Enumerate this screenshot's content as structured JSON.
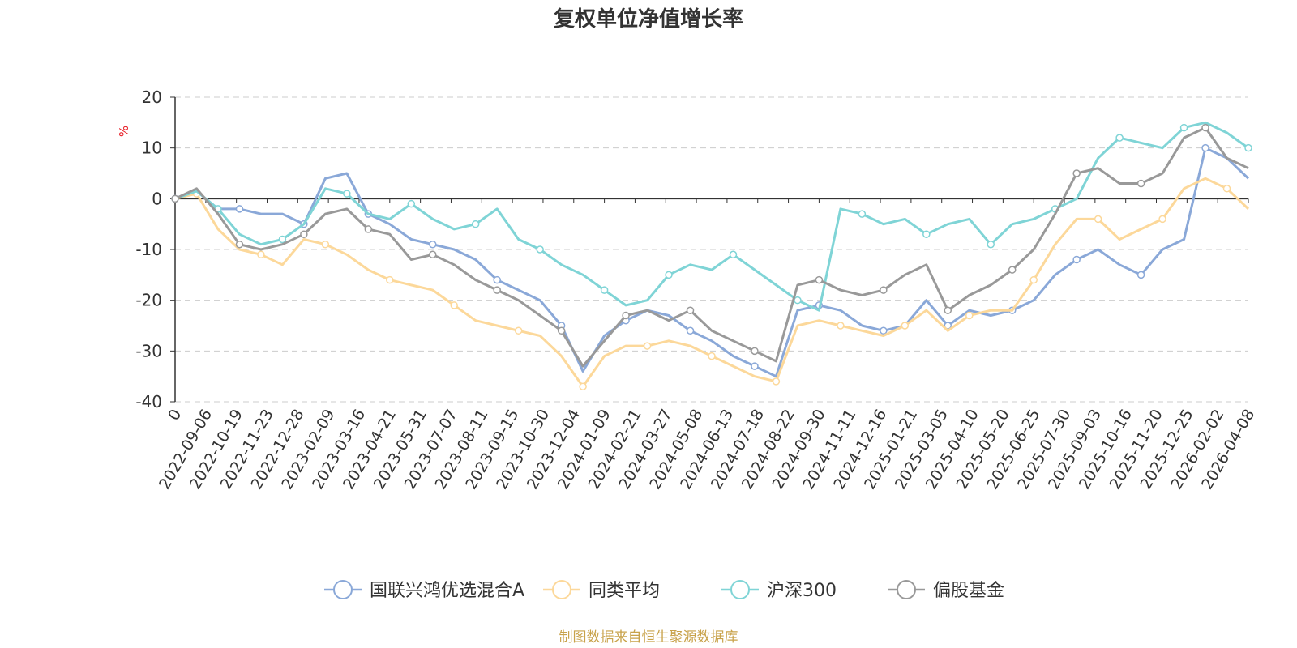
{
  "chart_data": {
    "type": "line",
    "title": "复权单位净值增长率",
    "ylabel": "%",
    "ylim": [
      -40,
      20
    ],
    "yticks": [
      -40,
      -30,
      -20,
      -10,
      0,
      10,
      20
    ],
    "x_tick_labels": [
      "0",
      "2022-09-06",
      "2022-10-19",
      "2022-11-23",
      "2022-12-28",
      "2023-02-09",
      "2023-03-16",
      "2023-04-21",
      "2023-05-31",
      "2023-07-07",
      "2023-08-11",
      "2023-09-15",
      "2023-10-30",
      "2023-12-04",
      "2024-01-09",
      "2024-02-21",
      "2024-03-27",
      "2024-05-08",
      "2024-06-13",
      "2024-07-18",
      "2024-08-22",
      "2024-09-30",
      "2024-11-11",
      "2024-12-16",
      "2025-01-21",
      "2025-03-05",
      "2025-04-10",
      "2025-05-20",
      "2025-06-25",
      "2025-07-30",
      "2025-09-03",
      "2025-10-16",
      "2025-11-20",
      "2025-12-25",
      "2026-02-02",
      "2026-04-08"
    ],
    "series": [
      {
        "name": "国联兴鸿优选混合A",
        "color": "#8aa8d8",
        "values": [
          0,
          1.5,
          -2,
          -2,
          -3,
          -3,
          -5,
          4,
          5,
          -3,
          -5,
          -8,
          -9,
          -10,
          -12,
          -16,
          -18,
          -20,
          -25,
          -34,
          -27,
          -24,
          -22,
          -23,
          -26,
          -28,
          -31,
          -33,
          -35,
          -22,
          -21,
          -22,
          -25,
          -26,
          -25,
          -20,
          -25,
          -22,
          -23,
          -22,
          -20,
          -15,
          -12,
          -10,
          -13,
          -15,
          -10,
          -8,
          10,
          8,
          4
        ]
      },
      {
        "name": "同类平均",
        "color": "#fcd89a",
        "values": [
          0,
          1,
          -6,
          -10,
          -11,
          -13,
          -8,
          -9,
          -11,
          -14,
          -16,
          -17,
          -18,
          -21,
          -24,
          -25,
          -26,
          -27,
          -31,
          -37,
          -31,
          -29,
          -29,
          -28,
          -29,
          -31,
          -33,
          -35,
          -36,
          -25,
          -24,
          -25,
          -26,
          -27,
          -25,
          -22,
          -26,
          -23,
          -22,
          -22,
          -16,
          -9,
          -4,
          -4,
          -8,
          -6,
          -4,
          2,
          4,
          2,
          -2
        ]
      },
      {
        "name": "沪深300",
        "color": "#7fd4d6",
        "values": [
          0,
          1.5,
          -2,
          -7,
          -9,
          -8,
          -5,
          2,
          1,
          -3,
          -4,
          -1,
          -4,
          -6,
          -5,
          -2,
          -8,
          -10,
          -13,
          -15,
          -18,
          -21,
          -20,
          -15,
          -13,
          -14,
          -11,
          -14,
          -17,
          -20,
          -22,
          -2,
          -3,
          -5,
          -4,
          -7,
          -5,
          -4,
          -9,
          -5,
          -4,
          -2,
          0,
          8,
          12,
          11,
          10,
          14,
          15,
          13,
          10
        ]
      },
      {
        "name": "偏股基金",
        "color": "#999999",
        "values": [
          0,
          2,
          -3,
          -9,
          -10,
          -9,
          -7,
          -3,
          -2,
          -6,
          -7,
          -12,
          -11,
          -13,
          -16,
          -18,
          -20,
          -23,
          -26,
          -33,
          -28,
          -23,
          -22,
          -24,
          -22,
          -26,
          -28,
          -30,
          -32,
          -17,
          -16,
          -18,
          -19,
          -18,
          -15,
          -13,
          -22,
          -19,
          -17,
          -14,
          -10,
          -3,
          5,
          6,
          3,
          3,
          5,
          12,
          14,
          8,
          6
        ]
      }
    ]
  },
  "legend_labels": [
    "国联兴鸿优选混合A",
    "同类平均",
    "沪深300",
    "偏股基金"
  ],
  "source_note": "制图数据来自恒生聚源数据库"
}
